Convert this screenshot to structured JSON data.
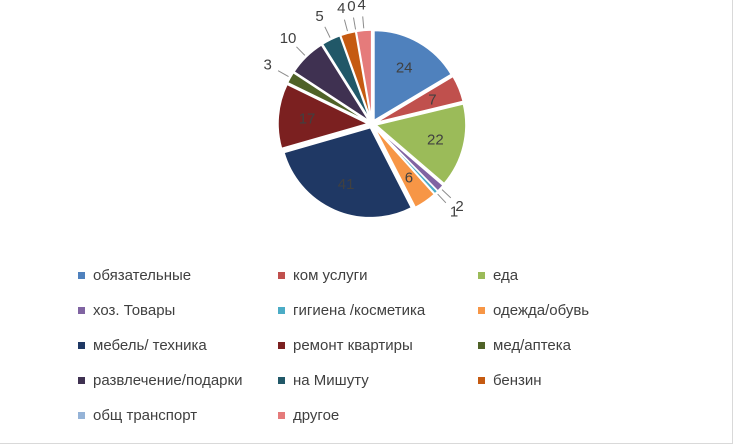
{
  "chart_data": {
    "type": "pie",
    "title": "",
    "legend_position": "bottom",
    "categories": [
      "обязательные",
      "ком услуги",
      "еда",
      "хоз. Товары",
      "гигиена /косметика",
      "одежда/обувь",
      "мебель/ техника",
      "ремонт квартиры",
      "мед/аптека",
      "развлечение/подарки",
      "на Мишуту",
      "бензин",
      "общ транспорт",
      "другое"
    ],
    "values": [
      24,
      7,
      22,
      2,
      1,
      6,
      41,
      17,
      3,
      10,
      5,
      4,
      0,
      4
    ],
    "colors": [
      "#4f81bd",
      "#c0504d",
      "#9bbb59",
      "#8064a2",
      "#4bacc6",
      "#f79646",
      "#1f3864",
      "#7b2020",
      "#4f6228",
      "#3f3151",
      "#215868",
      "#c55a11",
      "#95b3d7",
      "#e57b7b"
    ]
  }
}
